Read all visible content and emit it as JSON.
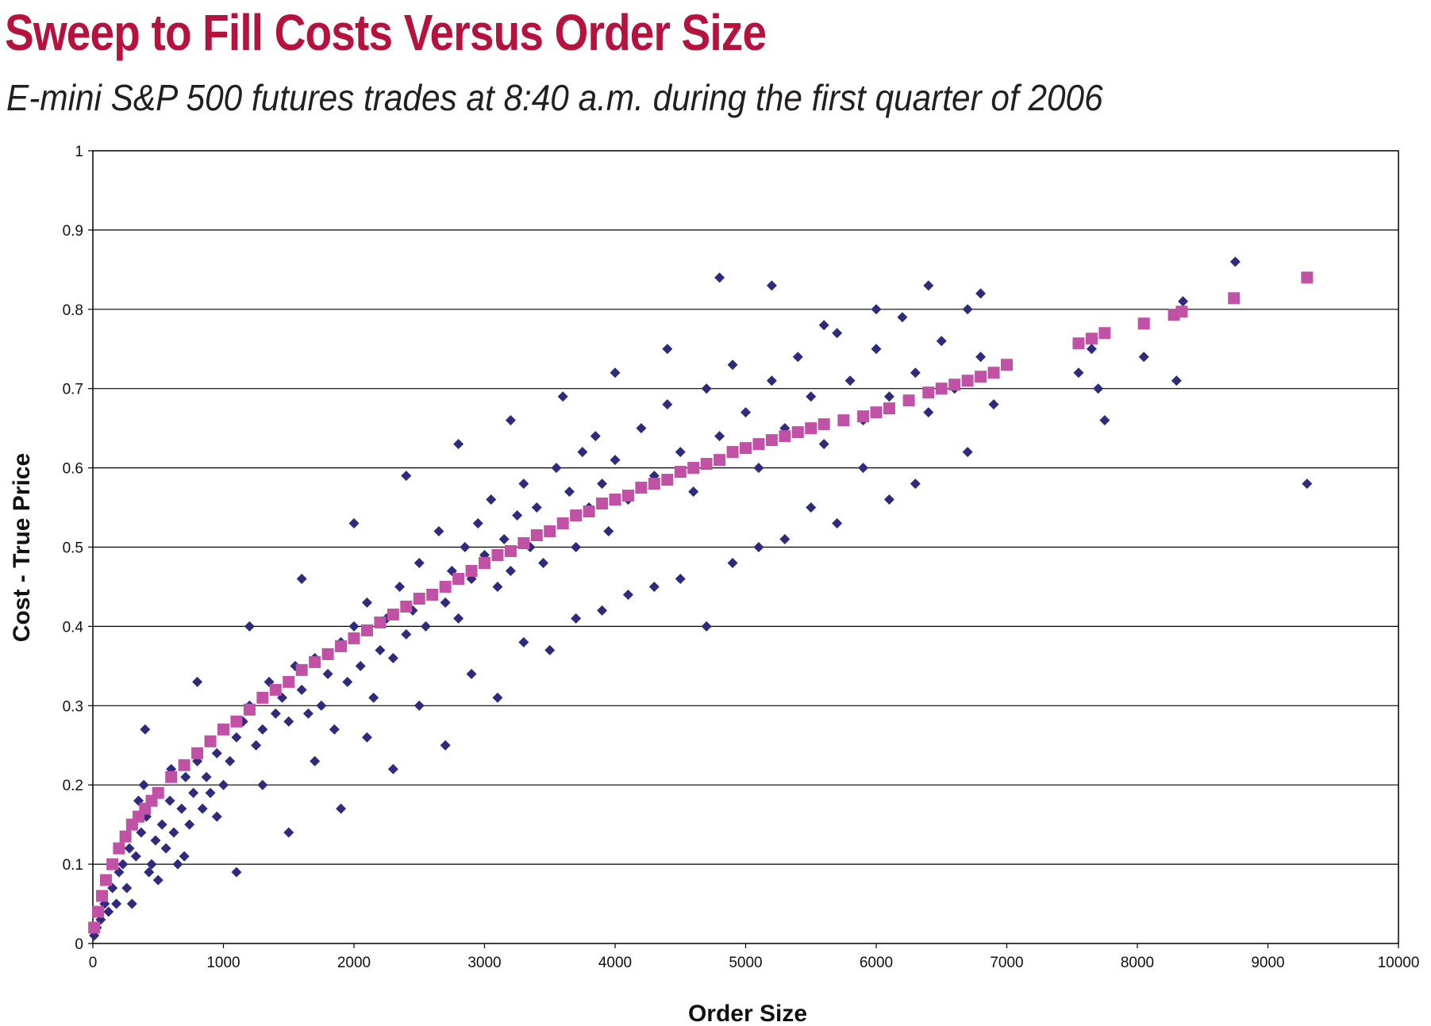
{
  "title": "Sweep to Fill Costs Versus Order Size",
  "subtitle": "E-mini S&P 500 futures trades at 8:40 a.m. during the first quarter of 2006",
  "colors": {
    "title": "#b5123e",
    "scatter_series": "#2e2a7c",
    "fit_series": "#c051a4",
    "gridline": "#000000",
    "text": "#231f20"
  },
  "chart_data": {
    "type": "scatter",
    "title": "Sweep to Fill Costs Versus Order Size",
    "subtitle": "E-mini S&P 500 futures trades at 8:40 a.m. during the first quarter of 2006",
    "xlabel": "Order Size",
    "ylabel": "Cost - True Price",
    "xlim": [
      0,
      10000
    ],
    "ylim": [
      0,
      1
    ],
    "x_ticks": [
      "0",
      "1000",
      "2000",
      "3000",
      "4000",
      "5000",
      "6000",
      "7000",
      "8000",
      "9000",
      "10000"
    ],
    "y_ticks": [
      "0",
      "0.1",
      "0.2",
      "0.3",
      "0.4",
      "0.5",
      "0.6",
      "0.7",
      "0.8",
      "0.9",
      "1"
    ],
    "grid": "horizontal",
    "legend": "none",
    "series": [
      {
        "marker": "diamond",
        "color": "#2e2a7c",
        "points": [
          [
            10,
            0.01
          ],
          [
            30,
            0.02
          ],
          [
            60,
            0.03
          ],
          [
            90,
            0.05
          ],
          [
            120,
            0.04
          ],
          [
            150,
            0.07
          ],
          [
            180,
            0.05
          ],
          [
            200,
            0.09
          ],
          [
            230,
            0.1
          ],
          [
            260,
            0.07
          ],
          [
            280,
            0.12
          ],
          [
            310,
            0.15
          ],
          [
            330,
            0.11
          ],
          [
            350,
            0.18
          ],
          [
            370,
            0.14
          ],
          [
            390,
            0.2
          ],
          [
            410,
            0.16
          ],
          [
            430,
            0.09
          ],
          [
            450,
            0.1
          ],
          [
            480,
            0.13
          ],
          [
            500,
            0.08
          ],
          [
            530,
            0.15
          ],
          [
            560,
            0.12
          ],
          [
            590,
            0.18
          ],
          [
            620,
            0.14
          ],
          [
            650,
            0.1
          ],
          [
            680,
            0.17
          ],
          [
            710,
            0.21
          ],
          [
            740,
            0.15
          ],
          [
            770,
            0.19
          ],
          [
            800,
            0.23
          ],
          [
            840,
            0.17
          ],
          [
            870,
            0.21
          ],
          [
            900,
            0.19
          ],
          [
            950,
            0.24
          ],
          [
            1000,
            0.2
          ],
          [
            1050,
            0.23
          ],
          [
            1100,
            0.26
          ],
          [
            1150,
            0.28
          ],
          [
            1200,
            0.3
          ],
          [
            1250,
            0.25
          ],
          [
            1300,
            0.27
          ],
          [
            1350,
            0.33
          ],
          [
            1400,
            0.29
          ],
          [
            1450,
            0.31
          ],
          [
            1500,
            0.28
          ],
          [
            1550,
            0.35
          ],
          [
            1600,
            0.32
          ],
          [
            1650,
            0.29
          ],
          [
            1700,
            0.36
          ],
          [
            1750,
            0.3
          ],
          [
            1800,
            0.34
          ],
          [
            1850,
            0.27
          ],
          [
            1900,
            0.38
          ],
          [
            1950,
            0.33
          ],
          [
            2000,
            0.4
          ],
          [
            2050,
            0.35
          ],
          [
            2100,
            0.43
          ],
          [
            2150,
            0.31
          ],
          [
            2200,
            0.37
          ],
          [
            2250,
            0.41
          ],
          [
            2300,
            0.36
          ],
          [
            2350,
            0.45
          ],
          [
            2400,
            0.39
          ],
          [
            2450,
            0.42
          ],
          [
            2500,
            0.48
          ],
          [
            2550,
            0.4
          ],
          [
            2600,
            0.44
          ],
          [
            2650,
            0.52
          ],
          [
            2700,
            0.43
          ],
          [
            2750,
            0.47
          ],
          [
            2800,
            0.41
          ],
          [
            2850,
            0.5
          ],
          [
            2900,
            0.46
          ],
          [
            2950,
            0.53
          ],
          [
            3000,
            0.49
          ],
          [
            3050,
            0.56
          ],
          [
            3100,
            0.45
          ],
          [
            3150,
            0.51
          ],
          [
            3200,
            0.47
          ],
          [
            3250,
            0.54
          ],
          [
            3300,
            0.58
          ],
          [
            3350,
            0.5
          ],
          [
            3400,
            0.55
          ],
          [
            3450,
            0.48
          ],
          [
            3500,
            0.52
          ],
          [
            3550,
            0.6
          ],
          [
            3600,
            0.53
          ],
          [
            3650,
            0.57
          ],
          [
            3700,
            0.5
          ],
          [
            3750,
            0.62
          ],
          [
            3800,
            0.55
          ],
          [
            3850,
            0.64
          ],
          [
            3900,
            0.58
          ],
          [
            3950,
            0.52
          ],
          [
            4000,
            0.61
          ],
          [
            4100,
            0.56
          ],
          [
            4200,
            0.65
          ],
          [
            4300,
            0.59
          ],
          [
            4400,
            0.68
          ],
          [
            4500,
            0.62
          ],
          [
            4600,
            0.57
          ],
          [
            4700,
            0.7
          ],
          [
            4800,
            0.64
          ],
          [
            4900,
            0.73
          ],
          [
            5000,
            0.67
          ],
          [
            5100,
            0.6
          ],
          [
            5200,
            0.71
          ],
          [
            5300,
            0.65
          ],
          [
            5400,
            0.74
          ],
          [
            5500,
            0.69
          ],
          [
            5600,
            0.63
          ],
          [
            5700,
            0.77
          ],
          [
            5800,
            0.71
          ],
          [
            5900,
            0.66
          ],
          [
            6000,
            0.75
          ],
          [
            6100,
            0.69
          ],
          [
            6200,
            0.79
          ],
          [
            6300,
            0.72
          ],
          [
            6400,
            0.67
          ],
          [
            6500,
            0.76
          ],
          [
            6600,
            0.7
          ],
          [
            6700,
            0.8
          ],
          [
            6800,
            0.74
          ],
          [
            6900,
            0.68
          ],
          [
            300,
            0.05
          ],
          [
            700,
            0.11
          ],
          [
            1100,
            0.09
          ],
          [
            1500,
            0.14
          ],
          [
            1900,
            0.17
          ],
          [
            2300,
            0.22
          ],
          [
            2700,
            0.25
          ],
          [
            3100,
            0.31
          ],
          [
            3500,
            0.37
          ],
          [
            3900,
            0.42
          ],
          [
            4300,
            0.45
          ],
          [
            4700,
            0.4
          ],
          [
            5100,
            0.5
          ],
          [
            5500,
            0.55
          ],
          [
            5900,
            0.6
          ],
          [
            6300,
            0.58
          ],
          [
            6700,
            0.62
          ],
          [
            400,
            0.27
          ],
          [
            800,
            0.33
          ],
          [
            1200,
            0.4
          ],
          [
            1600,
            0.46
          ],
          [
            2000,
            0.53
          ],
          [
            2400,
            0.59
          ],
          [
            2800,
            0.63
          ],
          [
            3200,
            0.66
          ],
          [
            3600,
            0.69
          ],
          [
            4000,
            0.72
          ],
          [
            4400,
            0.75
          ],
          [
            4800,
            0.84
          ],
          [
            5200,
            0.83
          ],
          [
            5600,
            0.78
          ],
          [
            6000,
            0.8
          ],
          [
            6400,
            0.83
          ],
          [
            6800,
            0.82
          ],
          [
            7550,
            0.72
          ],
          [
            7650,
            0.75
          ],
          [
            7700,
            0.7
          ],
          [
            7750,
            0.66
          ],
          [
            8050,
            0.74
          ],
          [
            8300,
            0.71
          ],
          [
            8350,
            0.81
          ],
          [
            8750,
            0.86
          ],
          [
            9300,
            0.58
          ],
          [
            600,
            0.22
          ],
          [
            950,
            0.16
          ],
          [
            1300,
            0.2
          ],
          [
            1700,
            0.23
          ],
          [
            2100,
            0.26
          ],
          [
            2500,
            0.3
          ],
          [
            2900,
            0.34
          ],
          [
            3300,
            0.38
          ],
          [
            3700,
            0.41
          ],
          [
            4100,
            0.44
          ],
          [
            4500,
            0.46
          ],
          [
            4900,
            0.48
          ],
          [
            5300,
            0.51
          ],
          [
            5700,
            0.53
          ],
          [
            6100,
            0.56
          ]
        ]
      },
      {
        "marker": "square",
        "color": "#c051a4",
        "points": [
          [
            10,
            0.02
          ],
          [
            40,
            0.04
          ],
          [
            70,
            0.06
          ],
          [
            100,
            0.08
          ],
          [
            150,
            0.1
          ],
          [
            200,
            0.12
          ],
          [
            250,
            0.135
          ],
          [
            300,
            0.15
          ],
          [
            350,
            0.16
          ],
          [
            400,
            0.17
          ],
          [
            450,
            0.18
          ],
          [
            500,
            0.19
          ],
          [
            600,
            0.21
          ],
          [
            700,
            0.225
          ],
          [
            800,
            0.24
          ],
          [
            900,
            0.255
          ],
          [
            1000,
            0.27
          ],
          [
            1100,
            0.28
          ],
          [
            1200,
            0.295
          ],
          [
            1300,
            0.31
          ],
          [
            1400,
            0.32
          ],
          [
            1500,
            0.33
          ],
          [
            1600,
            0.345
          ],
          [
            1700,
            0.355
          ],
          [
            1800,
            0.365
          ],
          [
            1900,
            0.375
          ],
          [
            2000,
            0.385
          ],
          [
            2100,
            0.395
          ],
          [
            2200,
            0.405
          ],
          [
            2300,
            0.415
          ],
          [
            2400,
            0.425
          ],
          [
            2500,
            0.435
          ],
          [
            2600,
            0.44
          ],
          [
            2700,
            0.45
          ],
          [
            2800,
            0.46
          ],
          [
            2900,
            0.47
          ],
          [
            3000,
            0.48
          ],
          [
            3100,
            0.49
          ],
          [
            3200,
            0.495
          ],
          [
            3300,
            0.505
          ],
          [
            3400,
            0.515
          ],
          [
            3500,
            0.52
          ],
          [
            3600,
            0.53
          ],
          [
            3700,
            0.54
          ],
          [
            3800,
            0.545
          ],
          [
            3900,
            0.555
          ],
          [
            4000,
            0.56
          ],
          [
            4100,
            0.565
          ],
          [
            4200,
            0.575
          ],
          [
            4300,
            0.58
          ],
          [
            4400,
            0.585
          ],
          [
            4500,
            0.595
          ],
          [
            4600,
            0.6
          ],
          [
            4700,
            0.605
          ],
          [
            4800,
            0.61
          ],
          [
            4900,
            0.62
          ],
          [
            5000,
            0.625
          ],
          [
            5100,
            0.63
          ],
          [
            5200,
            0.635
          ],
          [
            5300,
            0.64
          ],
          [
            5400,
            0.645
          ],
          [
            5500,
            0.65
          ],
          [
            5600,
            0.655
          ],
          [
            5750,
            0.66
          ],
          [
            5900,
            0.665
          ],
          [
            6000,
            0.67
          ],
          [
            6100,
            0.675
          ],
          [
            6250,
            0.685
          ],
          [
            6400,
            0.695
          ],
          [
            6500,
            0.7
          ],
          [
            6600,
            0.705
          ],
          [
            6700,
            0.71
          ],
          [
            6800,
            0.715
          ],
          [
            6900,
            0.72
          ],
          [
            7000,
            0.73
          ],
          [
            7550,
            0.757
          ],
          [
            7650,
            0.763
          ],
          [
            7750,
            0.77
          ],
          [
            8050,
            0.782
          ],
          [
            8280,
            0.793
          ],
          [
            8340,
            0.797
          ],
          [
            8740,
            0.814
          ],
          [
            9300,
            0.84
          ]
        ]
      }
    ]
  }
}
